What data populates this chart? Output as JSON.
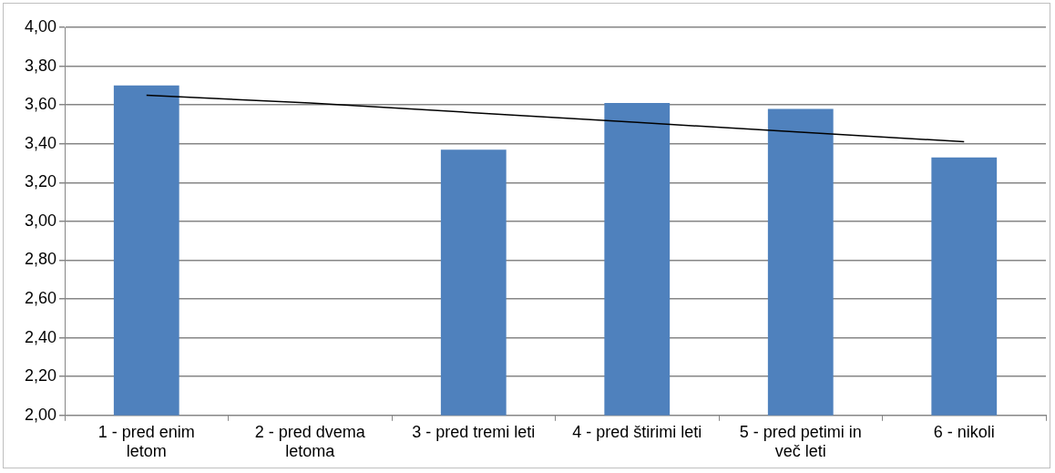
{
  "chart_data": {
    "type": "bar",
    "categories": [
      "1 - pred enim letom",
      "2 - pred dvema letoma",
      "3 - pred tremi leti",
      "4 - pred štirimi leti",
      "5 - pred petimi in več leti",
      "6 - nikoli"
    ],
    "series": [
      {
        "color": "#4f81bd",
        "values": [
          3.7,
          null,
          3.37,
          3.61,
          3.58,
          3.33
        ]
      },
      {
        "type": "line",
        "color": "#000000",
        "values": [
          3.65,
          3.61,
          3.56,
          3.51,
          3.46,
          3.41
        ]
      }
    ],
    "ylim": [
      2,
      4
    ],
    "yticks": [
      {
        "value": 2,
        "label": "2,00"
      },
      {
        "value": 2.2,
        "label": "2,20"
      },
      {
        "value": 2.4,
        "label": "2,40"
      },
      {
        "value": 2.6,
        "label": "2,60"
      },
      {
        "value": 2.8,
        "label": "2,80"
      },
      {
        "value": 3,
        "label": "3,00"
      },
      {
        "value": 3.2,
        "label": "3,20"
      },
      {
        "value": 3.4,
        "label": "3,40"
      },
      {
        "value": 3.6,
        "label": "3,60"
      },
      {
        "value": 3.8,
        "label": "3,80"
      },
      {
        "value": 4,
        "label": "4,00"
      }
    ],
    "grid": "y",
    "legend": false,
    "marker": "none",
    "line_style": "solid"
  }
}
